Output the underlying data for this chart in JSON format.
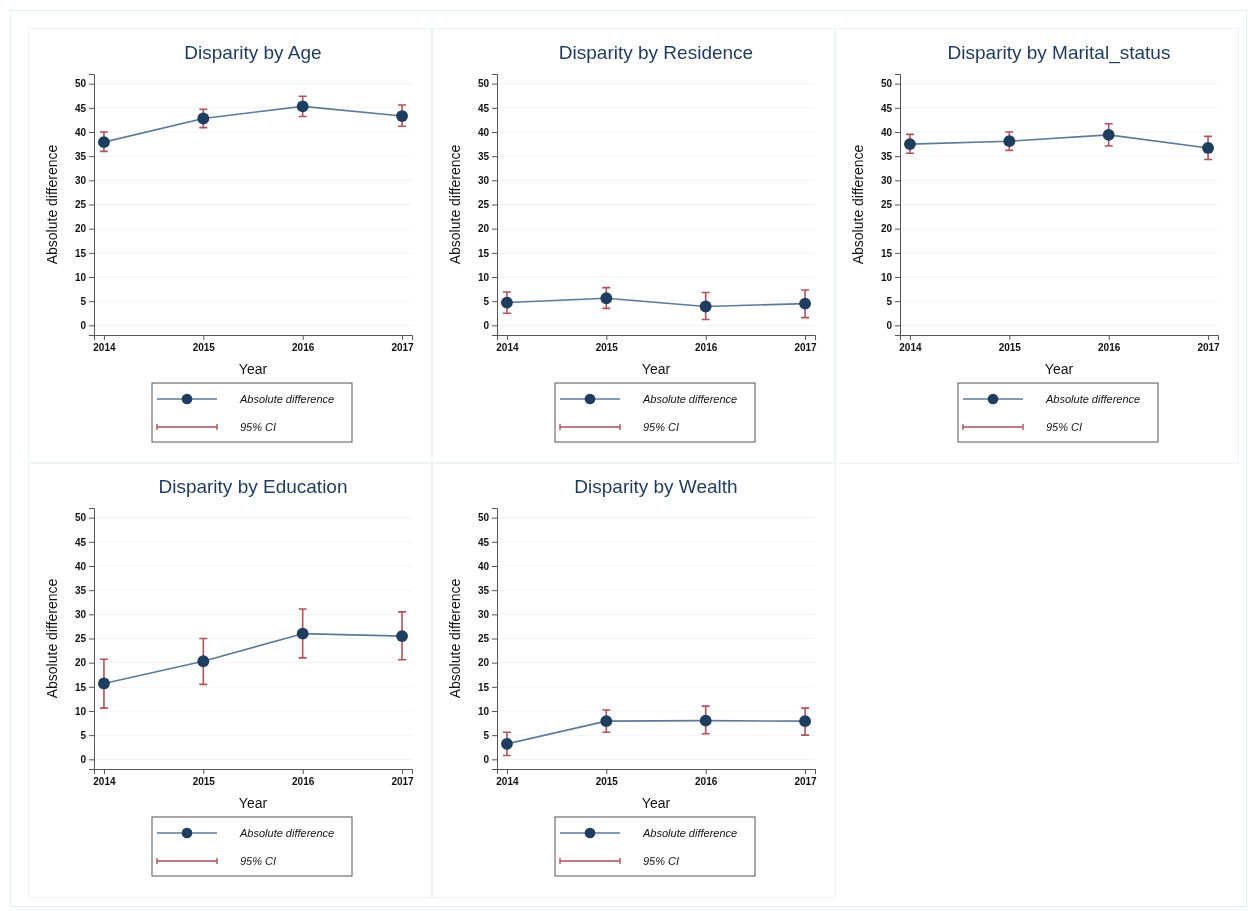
{
  "chart_data": [
    {
      "type": "line",
      "title": "Disparity by Age",
      "xlabel": "Year",
      "ylabel": "Absolute difference",
      "x": [
        2014,
        2015,
        2016,
        2017
      ],
      "xlim": [
        2013.9,
        2017.1
      ],
      "xticks": [
        2014,
        2015,
        2016,
        2017
      ],
      "ylim": [
        -2,
        52
      ],
      "yticks": [
        0,
        5,
        10,
        15,
        20,
        25,
        30,
        35,
        40,
        45,
        50
      ],
      "grid": "y",
      "legend": "bottom",
      "marker": "circle",
      "annotations": [
        "95% CI"
      ],
      "series": [
        {
          "name": "Absolute difference",
          "color": "#1f3d5f",
          "values": [
            37.9,
            42.8,
            45.3,
            43.3
          ],
          "errors": [
            [
              36,
              40
            ],
            [
              40.9,
              44.7
            ],
            [
              43.2,
              47.4
            ],
            [
              41.2,
              45.6
            ]
          ]
        }
      ]
    },
    {
      "type": "line",
      "title": "Disparity by Residence",
      "xlabel": "Year",
      "ylabel": "Absolute difference",
      "x": [
        2014,
        2015,
        2016,
        2017
      ],
      "xlim": [
        2013.9,
        2017.1
      ],
      "xticks": [
        2014,
        2015,
        2016,
        2017
      ],
      "ylim": [
        -2,
        52
      ],
      "yticks": [
        0,
        5,
        10,
        15,
        20,
        25,
        30,
        35,
        40,
        45,
        50
      ],
      "grid": "y",
      "legend": "bottom",
      "marker": "circle",
      "annotations": [
        "95% CI"
      ],
      "series": [
        {
          "name": "Absolute difference",
          "color": "#1f3d5f",
          "values": [
            4.7,
            5.6,
            3.9,
            4.5
          ],
          "errors": [
            [
              2.5,
              6.9
            ],
            [
              3.5,
              7.8
            ],
            [
              1.2,
              6.8
            ],
            [
              1.6,
              7.3
            ]
          ]
        }
      ]
    },
    {
      "type": "line",
      "title": "Disparity by Marital_status",
      "xlabel": "Year",
      "ylabel": "Absolute difference",
      "x": [
        2014,
        2015,
        2016,
        2017
      ],
      "xlim": [
        2013.9,
        2017.1
      ],
      "xticks": [
        2014,
        2015,
        2016,
        2017
      ],
      "ylim": [
        -2,
        52
      ],
      "yticks": [
        0,
        5,
        10,
        15,
        20,
        25,
        30,
        35,
        40,
        45,
        50
      ],
      "grid": "y",
      "legend": "bottom",
      "marker": "circle",
      "annotations": [
        "95% CI"
      ],
      "series": [
        {
          "name": "Absolute difference",
          "color": "#1f3d5f",
          "values": [
            37.5,
            38.1,
            39.4,
            36.7
          ],
          "errors": [
            [
              35.6,
              39.5
            ],
            [
              36.2,
              40
            ],
            [
              37.1,
              41.7
            ],
            [
              34.3,
              39.1
            ]
          ]
        }
      ]
    },
    {
      "type": "line",
      "title": "Disparity by Education",
      "xlabel": "Year",
      "ylabel": "Absolute difference",
      "x": [
        2014,
        2015,
        2016,
        2017
      ],
      "xlim": [
        2013.9,
        2017.1
      ],
      "xticks": [
        2014,
        2015,
        2016,
        2017
      ],
      "ylim": [
        -2,
        52
      ],
      "yticks": [
        0,
        5,
        10,
        15,
        20,
        25,
        30,
        35,
        40,
        45,
        50
      ],
      "grid": "y",
      "legend": "bottom",
      "marker": "circle",
      "annotations": [
        "95% CI"
      ],
      "series": [
        {
          "name": "Absolute difference",
          "color": "#1f3d5f",
          "values": [
            15.7,
            20.3,
            26,
            25.5
          ],
          "errors": [
            [
              10.6,
              20.7
            ],
            [
              15.5,
              25
            ],
            [
              21,
              31.1
            ],
            [
              20.6,
              30.5
            ]
          ]
        }
      ]
    },
    {
      "type": "line",
      "title": "Disparity by Wealth",
      "xlabel": "Year",
      "ylabel": "Absolute difference",
      "x": [
        2014,
        2015,
        2016,
        2017
      ],
      "xlim": [
        2013.9,
        2017.1
      ],
      "xticks": [
        2014,
        2015,
        2016,
        2017
      ],
      "ylim": [
        -2,
        52
      ],
      "yticks": [
        0,
        5,
        10,
        15,
        20,
        25,
        30,
        35,
        40,
        45,
        50
      ],
      "grid": "y",
      "legend": "bottom",
      "marker": "circle",
      "annotations": [
        "95% CI"
      ],
      "series": [
        {
          "name": "Absolute difference",
          "color": "#1f3d5f",
          "values": [
            3.2,
            7.9,
            8,
            7.9
          ],
          "errors": [
            [
              0.8,
              5.6
            ],
            [
              5.6,
              10.2
            ],
            [
              5.3,
              11
            ],
            [
              5,
              10.6
            ]
          ]
        }
      ]
    }
  ]
}
